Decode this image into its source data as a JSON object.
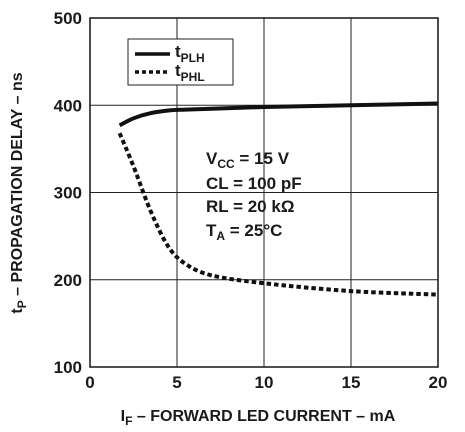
{
  "chart_data": {
    "type": "line",
    "xlabel": {
      "main": "I",
      "sub": "F",
      "rest": " – FORWARD LED CURRENT – mA"
    },
    "ylabel": {
      "main": "t",
      "sub": "P",
      "rest": " – PROPAGATION DELAY – ns"
    },
    "xlim": [
      0,
      20
    ],
    "ylim": [
      100,
      500
    ],
    "xticks": [
      "0",
      "5",
      "10",
      "15",
      "20"
    ],
    "yticks": [
      "100",
      "200",
      "300",
      "400",
      "500"
    ],
    "grid": true,
    "legend_position": "top-left",
    "series": [
      {
        "name": "tPLH",
        "name_main": "t",
        "name_sub": "PLH",
        "style": "solid",
        "x": [
          1.7,
          2.5,
          3.5,
          4.5,
          5.5,
          7,
          10,
          15,
          20
        ],
        "y": [
          377,
          385,
          391,
          394,
          395,
          396,
          398,
          400,
          402
        ]
      },
      {
        "name": "tPHL",
        "name_main": "t",
        "name_sub": "PHL",
        "style": "dotted",
        "x": [
          1.7,
          2.5,
          3.5,
          4.5,
          5.5,
          7,
          10,
          15,
          20
        ],
        "y": [
          368,
          330,
          278,
          238,
          218,
          205,
          196,
          187,
          183
        ]
      }
    ],
    "annotations": [
      {
        "main": "V",
        "sub": "CC",
        "rest": " = 15 V"
      },
      {
        "main": "CL = 100 pF",
        "sub": "",
        "rest": ""
      },
      {
        "main": "RL = 20 kΩ",
        "sub": "",
        "rest": ""
      },
      {
        "main": "T",
        "sub": "A",
        "rest": " = 25°C"
      }
    ],
    "colors": {
      "line": "#111111",
      "grid": "#222222",
      "text": "#1a1a1a"
    }
  }
}
